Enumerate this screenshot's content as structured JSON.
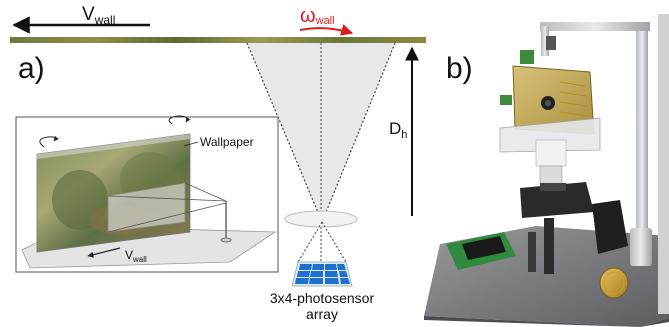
{
  "panel_a": {
    "label": "a)",
    "v_wall": {
      "base": "V",
      "sub": "wall"
    },
    "omega_wall": {
      "base": "ω",
      "sub": "wall"
    },
    "distance": {
      "base": "D",
      "sub": "h"
    },
    "sensor_caption_line1": "3x4-photosensor",
    "sensor_caption_line2": "array",
    "inset": {
      "wallpaper_label": "Wallpaper",
      "v_wall": {
        "base": "V",
        "sub": "wall"
      }
    }
  },
  "panel_b": {
    "label": "b)"
  },
  "colors": {
    "omega_arrow": "#e01b1b",
    "sensor_cells": "#1e6fd0",
    "cone_fill": "#e6e6e6"
  }
}
